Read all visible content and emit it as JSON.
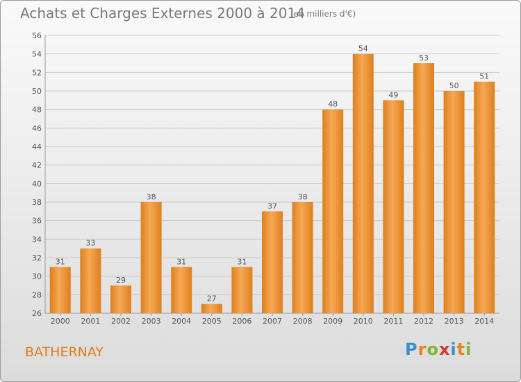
{
  "title": "Achats et Charges Externes 2000 à 2014",
  "subtitle": "(en milliers d'€)",
  "commune": "BATHERNAY",
  "brand": {
    "text": "Proxiti",
    "letters": [
      {
        "ch": "P",
        "color": "#3a8fd0"
      },
      {
        "ch": "r",
        "color": "#e8801e"
      },
      {
        "ch": "o",
        "color": "#7cb832"
      },
      {
        "ch": "x",
        "color": "#d23a2a"
      },
      {
        "ch": "i",
        "color": "#3a8fd0"
      },
      {
        "ch": "t",
        "color": "#e8801e"
      },
      {
        "ch": "i",
        "color": "#7cb832"
      }
    ]
  },
  "colors": {
    "bar_light": "#f6a855",
    "bar_dark": "#de7f1e",
    "text": "#555555",
    "grid": "#c8c8c8"
  },
  "chart_data": {
    "type": "bar",
    "categories": [
      "2000",
      "2001",
      "2002",
      "2003",
      "2004",
      "2005",
      "2006",
      "2007",
      "2008",
      "2009",
      "2010",
      "2011",
      "2012",
      "2013",
      "2014"
    ],
    "values": [
      31,
      33,
      29,
      38,
      31,
      27,
      31,
      37,
      38,
      48,
      54,
      49,
      53,
      50,
      51
    ],
    "title": "Achats et Charges Externes 2000 à 2014",
    "xlabel": "",
    "ylabel": "",
    "ylim": [
      26,
      56
    ],
    "yticks": [
      26,
      28,
      30,
      32,
      34,
      36,
      38,
      40,
      42,
      44,
      46,
      48,
      50,
      52,
      54,
      56
    ],
    "grid": true,
    "data_labels": true
  }
}
